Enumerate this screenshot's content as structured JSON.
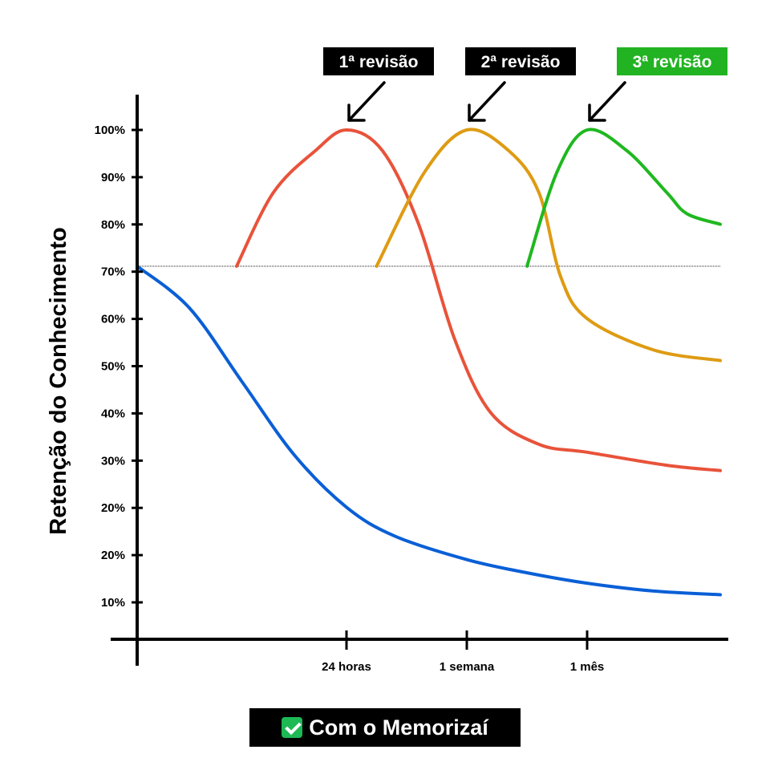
{
  "chart_data": {
    "type": "line",
    "ylabel": "Retenção do Conhecimento",
    "xlabel": "",
    "y_ticks": [
      "100%",
      "90%",
      "80%",
      "70%",
      "60%",
      "50%",
      "40%",
      "30%",
      "20%",
      "20%",
      "10%"
    ],
    "x_ticks": [
      "24 horas",
      "1 semana",
      "1 mês"
    ],
    "baseline_level": 74,
    "grid": false,
    "series": [
      {
        "key": "sem-revisao",
        "color": "#0a5fd6",
        "points": [
          [
            0,
            74
          ],
          [
            0.5,
            66
          ],
          [
            1,
            52
          ],
          [
            1.5,
            38
          ],
          [
            2,
            28
          ],
          [
            2.4,
            22.5
          ],
          [
            3,
            18
          ],
          [
            3.5,
            15.5
          ],
          [
            4,
            13.5
          ],
          [
            4.5,
            12
          ],
          [
            5,
            11.3
          ]
        ]
      },
      {
        "key": "revisao-1",
        "color": "#e8533a",
        "points": [
          [
            0.95,
            74
          ],
          [
            1.3,
            88
          ],
          [
            1.7,
            96
          ],
          [
            2,
            100
          ],
          [
            2.3,
            96
          ],
          [
            2.6,
            82
          ],
          [
            2.9,
            60
          ],
          [
            3.2,
            46
          ],
          [
            3.6,
            40
          ],
          [
            4,
            38.5
          ],
          [
            4.6,
            36
          ],
          [
            5,
            35
          ]
        ]
      },
      {
        "key": "revisao-2",
        "color": "#de9b13",
        "points": [
          [
            2.25,
            74
          ],
          [
            2.65,
            92
          ],
          [
            3,
            100
          ],
          [
            3.35,
            96
          ],
          [
            3.6,
            88
          ],
          [
            3.78,
            72
          ],
          [
            4,
            64
          ],
          [
            4.5,
            58
          ],
          [
            5,
            56
          ]
        ]
      },
      {
        "key": "revisao-3",
        "color": "#1fb81f",
        "points": [
          [
            3.5,
            74
          ],
          [
            3.75,
            92
          ],
          [
            4,
            100
          ],
          [
            4.3,
            96
          ],
          [
            4.6,
            88
          ],
          [
            4.75,
            84
          ],
          [
            5,
            82
          ]
        ]
      }
    ],
    "annotations": [
      {
        "label": "1ª revisão",
        "color": "#000000",
        "target_x": 2
      },
      {
        "label": "2ª revisão",
        "color": "#000000",
        "target_x": 3
      },
      {
        "label": "3ª revisão",
        "color": "#22b322",
        "target_x": 4
      }
    ]
  },
  "footer": {
    "label": "Com o Memorizaí",
    "icon": "check-icon"
  }
}
